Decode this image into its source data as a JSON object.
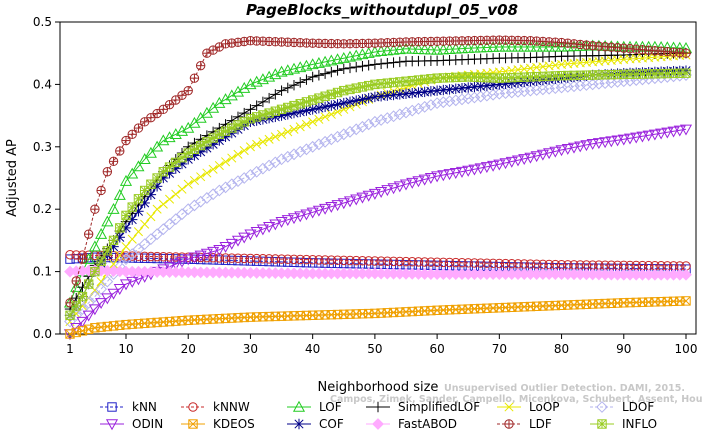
{
  "chart_data": {
    "type": "line",
    "title": "PageBlocks_withoutdupl_05_v08",
    "xlabel": "Neighborhood size",
    "ylabel": "Adjusted AP",
    "xlim": [
      1,
      100
    ],
    "ylim": [
      0,
      0.5
    ],
    "xticks": [
      1,
      10,
      20,
      30,
      40,
      50,
      60,
      70,
      80,
      90,
      100
    ],
    "yticks": [
      0.0,
      0.1,
      0.2,
      0.3,
      0.4,
      0.5
    ],
    "xtick_labels": [
      "1",
      "10",
      "20",
      "30",
      "40",
      "50",
      "60",
      "70",
      "80",
      "90",
      "100"
    ],
    "ytick_labels": [
      "0.0",
      "0.1",
      "0.2",
      "0.3",
      "0.4",
      "0.5"
    ],
    "grid": false,
    "legend_position": "bottom",
    "series": [
      {
        "name": "kNN",
        "color": "#2020c8",
        "marker": "square",
        "dash": true,
        "points": [
          [
            1,
            0.12
          ],
          [
            5,
            0.123
          ],
          [
            10,
            0.122
          ],
          [
            20,
            0.12
          ],
          [
            30,
            0.117
          ],
          [
            40,
            0.114
          ],
          [
            50,
            0.112
          ],
          [
            60,
            0.11
          ],
          [
            70,
            0.108
          ],
          [
            80,
            0.106
          ],
          [
            90,
            0.105
          ],
          [
            100,
            0.104
          ]
        ]
      },
      {
        "name": "kNNW",
        "color": "#c82828",
        "marker": "circle",
        "dash": true,
        "points": [
          [
            1,
            0.127
          ],
          [
            5,
            0.126
          ],
          [
            10,
            0.125
          ],
          [
            20,
            0.123
          ],
          [
            30,
            0.121
          ],
          [
            40,
            0.119
          ],
          [
            50,
            0.117
          ],
          [
            60,
            0.115
          ],
          [
            70,
            0.113
          ],
          [
            80,
            0.111
          ],
          [
            90,
            0.11
          ],
          [
            100,
            0.109
          ]
        ]
      },
      {
        "name": "LOF",
        "color": "#22cc22",
        "marker": "triangle",
        "dash": false,
        "points": [
          [
            1,
            0.05
          ],
          [
            3,
            0.1
          ],
          [
            5,
            0.14
          ],
          [
            8,
            0.2
          ],
          [
            10,
            0.245
          ],
          [
            13,
            0.28
          ],
          [
            16,
            0.31
          ],
          [
            20,
            0.33
          ],
          [
            25,
            0.37
          ],
          [
            30,
            0.4
          ],
          [
            35,
            0.42
          ],
          [
            40,
            0.432
          ],
          [
            45,
            0.442
          ],
          [
            50,
            0.452
          ],
          [
            55,
            0.457
          ],
          [
            60,
            0.455
          ],
          [
            65,
            0.458
          ],
          [
            70,
            0.46
          ],
          [
            75,
            0.46
          ],
          [
            80,
            0.46
          ],
          [
            85,
            0.462
          ],
          [
            90,
            0.46
          ],
          [
            95,
            0.46
          ],
          [
            100,
            0.458
          ]
        ]
      },
      {
        "name": "SimplifiedLOF",
        "color": "#000000",
        "marker": "plus",
        "dash": false,
        "points": [
          [
            1,
            0.04
          ],
          [
            3,
            0.075
          ],
          [
            5,
            0.11
          ],
          [
            8,
            0.15
          ],
          [
            10,
            0.18
          ],
          [
            13,
            0.22
          ],
          [
            16,
            0.26
          ],
          [
            20,
            0.3
          ],
          [
            25,
            0.33
          ],
          [
            30,
            0.36
          ],
          [
            35,
            0.39
          ],
          [
            40,
            0.412
          ],
          [
            45,
            0.425
          ],
          [
            50,
            0.432
          ],
          [
            55,
            0.437
          ],
          [
            60,
            0.438
          ],
          [
            65,
            0.44
          ],
          [
            70,
            0.442
          ],
          [
            75,
            0.443
          ],
          [
            80,
            0.445
          ],
          [
            85,
            0.446
          ],
          [
            90,
            0.447
          ],
          [
            95,
            0.449
          ],
          [
            100,
            0.45
          ]
        ]
      },
      {
        "name": "LoOP",
        "color": "#e8e800",
        "marker": "x",
        "dash": false,
        "points": [
          [
            1,
            0.02
          ],
          [
            5,
            0.07
          ],
          [
            10,
            0.14
          ],
          [
            15,
            0.2
          ],
          [
            20,
            0.24
          ],
          [
            25,
            0.27
          ],
          [
            30,
            0.3
          ],
          [
            35,
            0.32
          ],
          [
            40,
            0.34
          ],
          [
            45,
            0.36
          ],
          [
            50,
            0.38
          ],
          [
            55,
            0.395
          ],
          [
            60,
            0.41
          ],
          [
            70,
            0.42
          ],
          [
            80,
            0.432
          ],
          [
            90,
            0.44
          ],
          [
            100,
            0.447
          ]
        ]
      },
      {
        "name": "LDOF",
        "color": "#b4b4ee",
        "marker": "diamond",
        "dash": true,
        "points": [
          [
            1,
            0.02
          ],
          [
            5,
            0.06
          ],
          [
            10,
            0.12
          ],
          [
            15,
            0.16
          ],
          [
            20,
            0.2
          ],
          [
            25,
            0.23
          ],
          [
            30,
            0.255
          ],
          [
            35,
            0.28
          ],
          [
            40,
            0.3
          ],
          [
            45,
            0.32
          ],
          [
            50,
            0.34
          ],
          [
            55,
            0.355
          ],
          [
            60,
            0.37
          ],
          [
            70,
            0.385
          ],
          [
            80,
            0.395
          ],
          [
            90,
            0.405
          ],
          [
            100,
            0.415
          ]
        ]
      },
      {
        "name": "ODIN",
        "color": "#9a22dd",
        "marker": "triangle-down",
        "dash": false,
        "points": [
          [
            1,
            0.0
          ],
          [
            3,
            0.02
          ],
          [
            6,
            0.05
          ],
          [
            10,
            0.08
          ],
          [
            15,
            0.1
          ],
          [
            20,
            0.12
          ],
          [
            25,
            0.135
          ],
          [
            30,
            0.16
          ],
          [
            35,
            0.18
          ],
          [
            40,
            0.195
          ],
          [
            45,
            0.21
          ],
          [
            50,
            0.225
          ],
          [
            55,
            0.24
          ],
          [
            60,
            0.253
          ],
          [
            65,
            0.262
          ],
          [
            70,
            0.272
          ],
          [
            75,
            0.283
          ],
          [
            80,
            0.295
          ],
          [
            85,
            0.305
          ],
          [
            90,
            0.312
          ],
          [
            95,
            0.32
          ],
          [
            100,
            0.328
          ]
        ]
      },
      {
        "name": "KDEOS",
        "color": "#f0a000",
        "marker": "square-x",
        "dash": false,
        "points": [
          [
            1,
            0.0
          ],
          [
            5,
            0.01
          ],
          [
            10,
            0.015
          ],
          [
            20,
            0.022
          ],
          [
            30,
            0.027
          ],
          [
            40,
            0.03
          ],
          [
            50,
            0.033
          ],
          [
            60,
            0.038
          ],
          [
            70,
            0.042
          ],
          [
            80,
            0.046
          ],
          [
            90,
            0.05
          ],
          [
            100,
            0.053
          ]
        ]
      },
      {
        "name": "COF",
        "color": "#000088",
        "marker": "asterisk",
        "dash": false,
        "points": [
          [
            1,
            0.03
          ],
          [
            3,
            0.06
          ],
          [
            5,
            0.1
          ],
          [
            8,
            0.14
          ],
          [
            10,
            0.17
          ],
          [
            13,
            0.21
          ],
          [
            16,
            0.25
          ],
          [
            20,
            0.28
          ],
          [
            25,
            0.31
          ],
          [
            30,
            0.34
          ],
          [
            35,
            0.35
          ],
          [
            40,
            0.36
          ],
          [
            45,
            0.37
          ],
          [
            50,
            0.38
          ],
          [
            55,
            0.385
          ],
          [
            60,
            0.39
          ],
          [
            65,
            0.395
          ],
          [
            70,
            0.4
          ],
          [
            75,
            0.405
          ],
          [
            80,
            0.41
          ],
          [
            85,
            0.415
          ],
          [
            90,
            0.418
          ],
          [
            95,
            0.42
          ],
          [
            100,
            0.422
          ]
        ]
      },
      {
        "name": "FastABOD",
        "color": "#ffaaff",
        "marker": "diamond-filled",
        "dash": false,
        "points": [
          [
            1,
            0.1
          ],
          [
            5,
            0.102
          ],
          [
            10,
            0.1
          ],
          [
            20,
            0.099
          ],
          [
            30,
            0.098
          ],
          [
            40,
            0.097
          ],
          [
            50,
            0.097
          ],
          [
            60,
            0.096
          ],
          [
            70,
            0.096
          ],
          [
            80,
            0.096
          ],
          [
            90,
            0.095
          ],
          [
            100,
            0.095
          ]
        ]
      },
      {
        "name": "LDF",
        "color": "#a02828",
        "marker": "circle-plus",
        "dash": true,
        "points": [
          [
            1,
            0.05
          ],
          [
            3,
            0.12
          ],
          [
            5,
            0.2
          ],
          [
            7,
            0.26
          ],
          [
            10,
            0.31
          ],
          [
            13,
            0.34
          ],
          [
            16,
            0.36
          ],
          [
            20,
            0.39
          ],
          [
            23,
            0.45
          ],
          [
            26,
            0.465
          ],
          [
            30,
            0.47
          ],
          [
            35,
            0.468
          ],
          [
            40,
            0.466
          ],
          [
            45,
            0.465
          ],
          [
            50,
            0.466
          ],
          [
            55,
            0.468
          ],
          [
            60,
            0.469
          ],
          [
            65,
            0.47
          ],
          [
            70,
            0.471
          ],
          [
            75,
            0.47
          ],
          [
            80,
            0.467
          ],
          [
            85,
            0.462
          ],
          [
            90,
            0.458
          ],
          [
            95,
            0.454
          ],
          [
            100,
            0.45
          ]
        ]
      },
      {
        "name": "INFLO",
        "color": "#99cc22",
        "marker": "square-star",
        "dash": false,
        "points": [
          [
            1,
            0.03
          ],
          [
            3,
            0.06
          ],
          [
            5,
            0.1
          ],
          [
            8,
            0.15
          ],
          [
            10,
            0.19
          ],
          [
            13,
            0.23
          ],
          [
            16,
            0.26
          ],
          [
            20,
            0.29
          ],
          [
            25,
            0.32
          ],
          [
            30,
            0.345
          ],
          [
            35,
            0.36
          ],
          [
            40,
            0.375
          ],
          [
            45,
            0.39
          ],
          [
            50,
            0.4
          ],
          [
            55,
            0.405
          ],
          [
            60,
            0.41
          ],
          [
            65,
            0.412
          ],
          [
            70,
            0.41
          ],
          [
            75,
            0.412
          ],
          [
            80,
            0.414
          ],
          [
            85,
            0.415
          ],
          [
            90,
            0.416
          ],
          [
            95,
            0.417
          ],
          [
            100,
            0.418
          ]
        ]
      }
    ],
    "legend_rows": [
      [
        "kNN",
        "kNNW",
        "LOF",
        "SimplifiedLOF",
        "LoOP",
        "LDOF"
      ],
      [
        "ODIN",
        "KDEOS",
        "COF",
        "FastABOD",
        "LDF",
        "INFLO"
      ]
    ]
  },
  "watermark": {
    "line1": "Unsupervised Outlier Detection. DAMI, 2015.",
    "line2": "Campos, Zimek, Sander, Campello, Micenkova, Schubert, Assent, Houle"
  }
}
